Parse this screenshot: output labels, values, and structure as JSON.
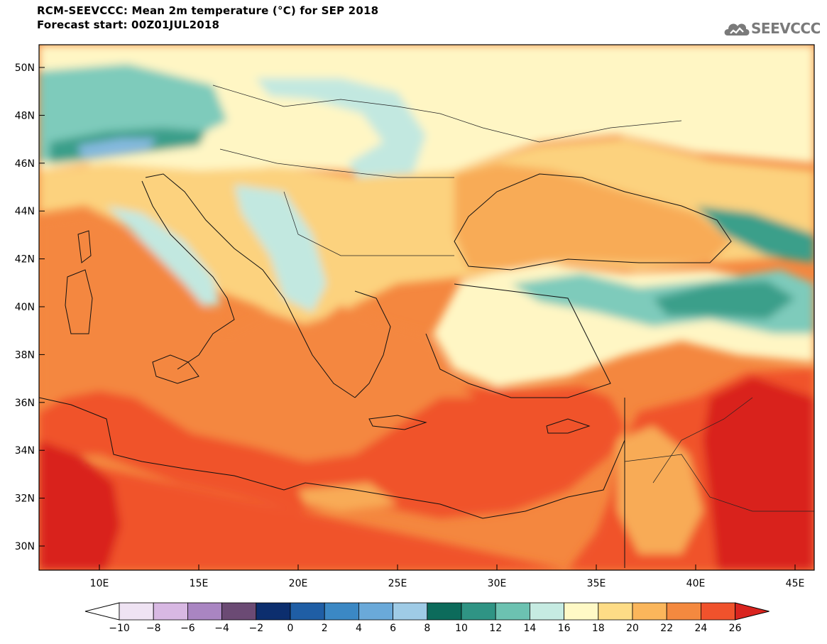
{
  "header": {
    "title_line1": "RCM-SEEVCCC: Mean 2m temperature (°C) for SEP 2018",
    "title_line2": "Forecast start: 00Z01JUL2018",
    "logo_text": "SEEVCCC",
    "logo_icon": "cloud-icon"
  },
  "map": {
    "lat_labels": [
      "50N",
      "48N",
      "46N",
      "44N",
      "42N",
      "40N",
      "38N",
      "36N",
      "34N",
      "32N",
      "30N"
    ],
    "lon_labels": [
      "10E",
      "15E",
      "20E",
      "25E",
      "30E",
      "35E",
      "40E",
      "45E"
    ],
    "colors": {
      "sea_warm": "#f4873f",
      "hot": "#f0522c",
      "very_hot": "#d9241f",
      "warm": "#f8ab56",
      "mild": "#fcd27e",
      "cool": "#fff6c4",
      "teal_light": "#c2e8e0",
      "teal_mid": "#7ecbbb",
      "teal": "#3a9f8a",
      "teal_dark": "#127060",
      "blue_light": "#85b9df",
      "blue": "#4a90c8"
    }
  },
  "legend": {
    "labels": [
      "−10",
      "−8",
      "−6",
      "−4",
      "−2",
      "0",
      "2",
      "4",
      "6",
      "8",
      "10",
      "12",
      "14",
      "16",
      "18",
      "20",
      "22",
      "24",
      "26"
    ],
    "colors": [
      "#efe3f3",
      "#d8b8e3",
      "#a985c2",
      "#6b4a74",
      "#0c2e6e",
      "#1f5ea5",
      "#3b88c4",
      "#6aa9d9",
      "#9fcbe6",
      "#0c6b5b",
      "#2f9484",
      "#6cc2b1",
      "#c6ebe2",
      "#fff9c6",
      "#fedc86",
      "#fbb65b",
      "#f4893f",
      "#f0522c"
    ],
    "low_color": "#ffffff",
    "high_color": "#d9241f"
  }
}
